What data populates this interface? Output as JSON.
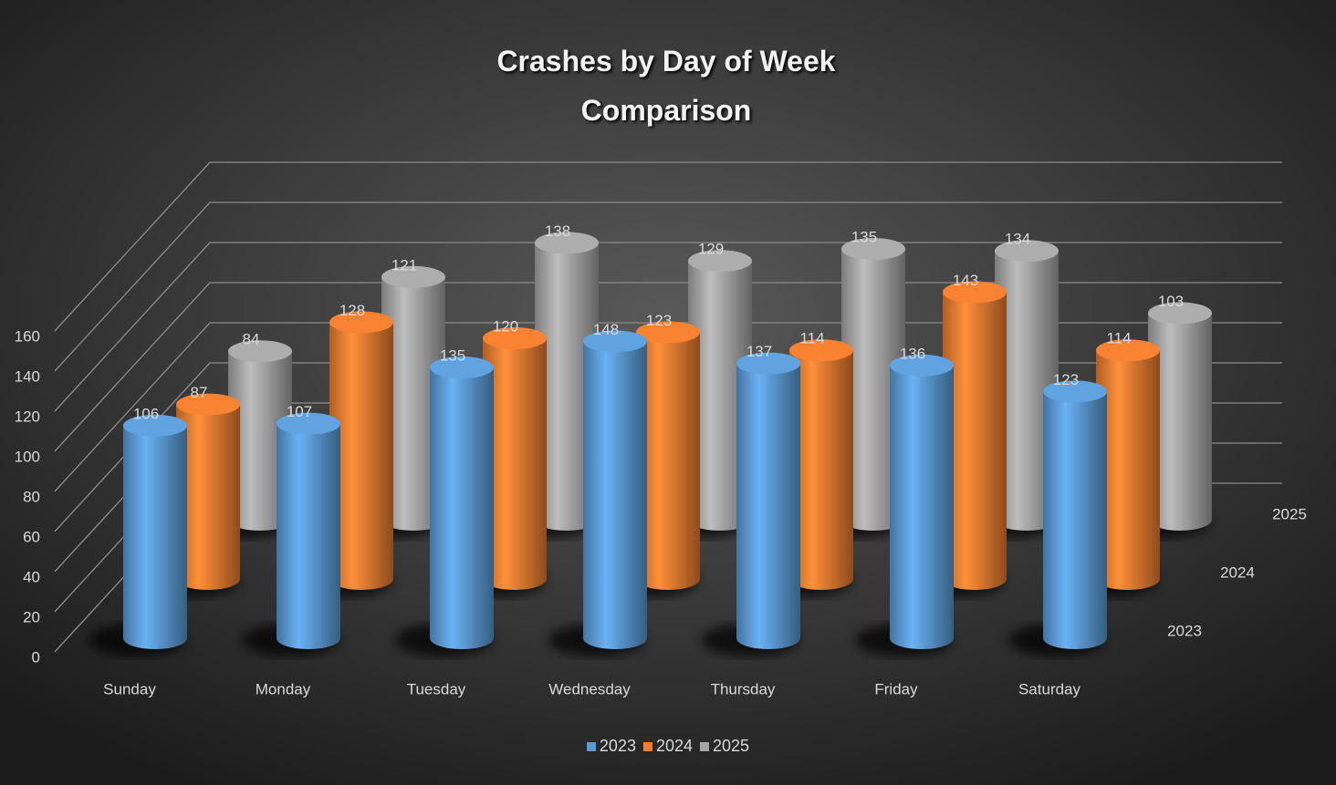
{
  "chart_data": {
    "type": "bar3d",
    "title": "Crashes by Day of Week Comparison",
    "categories": [
      "Sunday",
      "Monday",
      "Tuesday",
      "Wednesday",
      "Thursday",
      "Friday",
      "Saturday"
    ],
    "series": [
      {
        "name": "2023",
        "color": "#5b9bd5",
        "values": [
          106,
          107,
          135,
          148,
          137,
          136,
          123
        ]
      },
      {
        "name": "2024",
        "color": "#ed7d31",
        "values": [
          87,
          128,
          120,
          123,
          114,
          143,
          114
        ]
      },
      {
        "name": "2025",
        "color": "#a5a5a5",
        "values": [
          84,
          121,
          138,
          129,
          135,
          134,
          103
        ]
      }
    ],
    "ylim": [
      0,
      160
    ],
    "yticks": [
      0,
      20,
      40,
      60,
      80,
      100,
      120,
      140,
      160
    ],
    "grid": true,
    "legend": "bottom"
  }
}
